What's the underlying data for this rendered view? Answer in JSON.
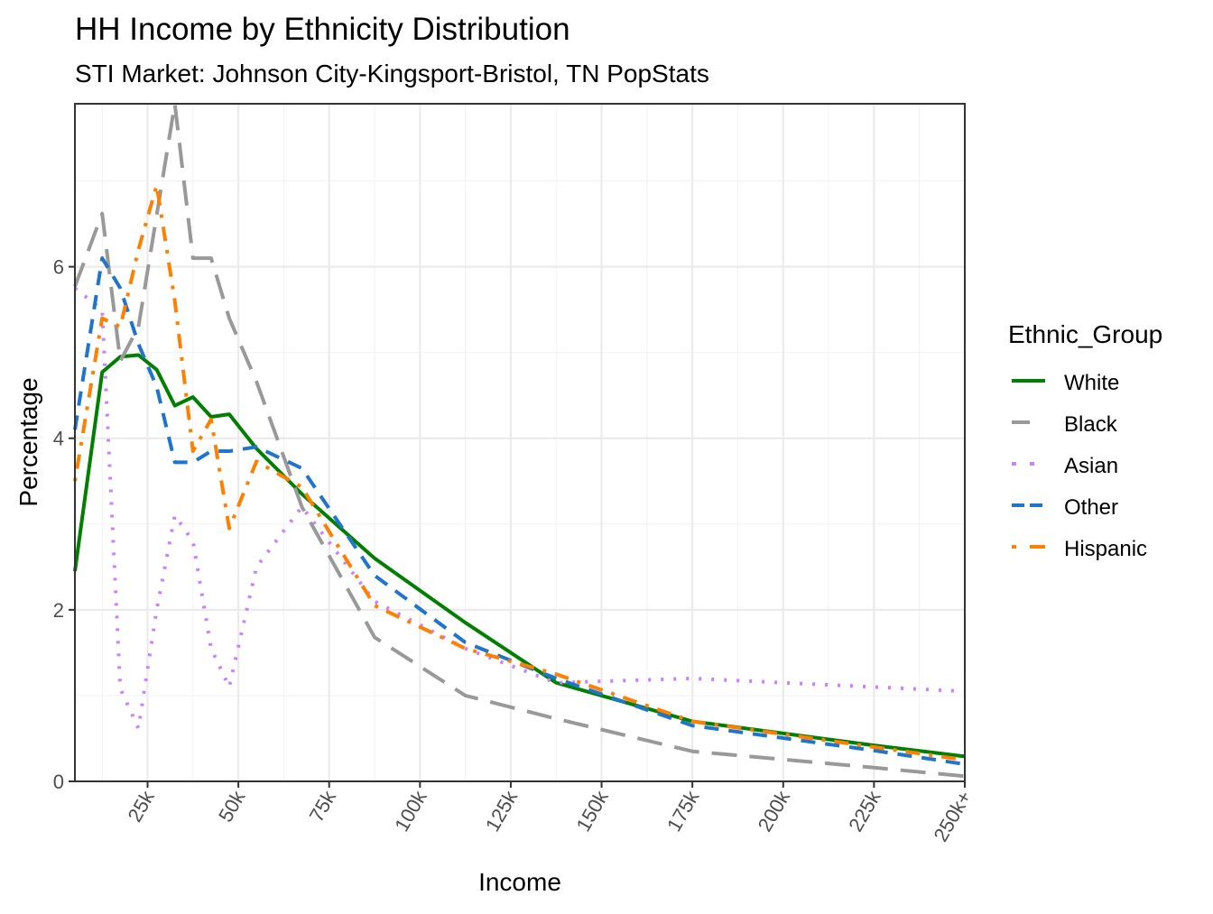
{
  "chart_data": {
    "type": "line",
    "title": "HH Income by Ethnicity Distribution",
    "subtitle": "STI Market: Johnson City-Kingsport-Bristol, TN PopStats",
    "xlabel": "Income",
    "ylabel": "Percentage",
    "xlim": [
      5,
      250
    ],
    "ylim": [
      0,
      7.9
    ],
    "x_ticks": [
      25,
      50,
      75,
      100,
      125,
      150,
      175,
      200,
      225,
      250
    ],
    "x_tick_labels": [
      "25k",
      "50k",
      "75k",
      "100k",
      "125k",
      "150k",
      "175k",
      "200k",
      "225k",
      "250k+"
    ],
    "y_ticks": [
      0,
      2,
      4,
      6
    ],
    "y_tick_labels": [
      "0",
      "2",
      "4",
      "6"
    ],
    "grid": true,
    "legend": {
      "title": "Ethnic_Group",
      "placement": "right"
    },
    "x": [
      5,
      12.5,
      17.5,
      22.5,
      27.5,
      32.5,
      37.5,
      42.5,
      47.5,
      55,
      67.5,
      87.5,
      112.5,
      137.5,
      175,
      225,
      250
    ],
    "series": [
      {
        "name": "White",
        "color": "#007F00",
        "dash": "solid",
        "values": [
          2.45,
          4.77,
          4.95,
          4.97,
          4.8,
          4.38,
          4.48,
          4.25,
          4.28,
          3.88,
          3.35,
          2.6,
          1.85,
          1.15,
          0.7,
          0.42,
          0.29
        ]
      },
      {
        "name": "Black",
        "color": "#999999",
        "dash": "longdash",
        "values": [
          5.77,
          6.62,
          4.9,
          5.3,
          6.6,
          7.9,
          6.1,
          6.1,
          5.4,
          4.66,
          3.2,
          1.68,
          1.0,
          0.73,
          0.35,
          0.16,
          0.06
        ]
      },
      {
        "name": "Asian",
        "color": "#CC80FF",
        "dash": "dotted",
        "values": [
          5.75,
          5.5,
          1.08,
          0.62,
          2.0,
          3.1,
          2.8,
          1.55,
          1.1,
          2.5,
          3.2,
          2.1,
          1.55,
          1.15,
          1.2,
          1.1,
          1.05
        ]
      },
      {
        "name": "Other",
        "color": "#1F74CD",
        "dash": "dashed",
        "values": [
          4.1,
          6.1,
          5.75,
          5.1,
          4.6,
          3.72,
          3.72,
          3.85,
          3.85,
          3.9,
          3.65,
          2.4,
          1.62,
          1.2,
          0.65,
          0.36,
          0.2
        ]
      },
      {
        "name": "Hispanic",
        "color": "#FF7F00",
        "dash": "dotdash",
        "values": [
          3.5,
          5.4,
          5.3,
          6.2,
          6.95,
          5.6,
          3.85,
          4.22,
          2.95,
          3.73,
          3.43,
          2.05,
          1.55,
          1.25,
          0.7,
          0.4,
          0.25
        ]
      }
    ]
  }
}
